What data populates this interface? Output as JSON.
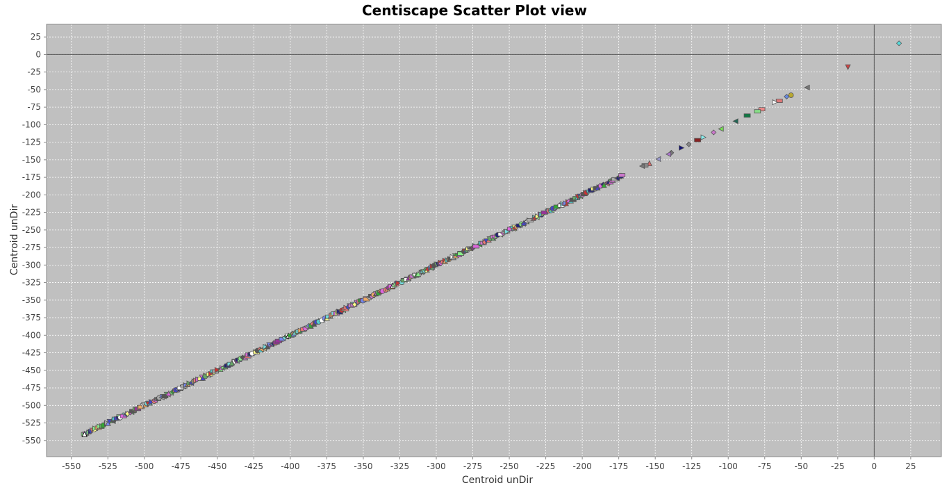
{
  "chart_data": {
    "type": "scatter",
    "title": "Centiscape Scatter Plot view",
    "xlabel": "Centroid unDir",
    "ylabel": "Centroid unDir",
    "xlim": [
      -567,
      46
    ],
    "ylim": [
      -573,
      43
    ],
    "x_ticks": [
      -550,
      -525,
      -500,
      -475,
      -450,
      -425,
      -400,
      -375,
      -350,
      -325,
      -300,
      -275,
      -250,
      -225,
      -200,
      -175,
      -150,
      -125,
      -100,
      -75,
      -50,
      -25,
      0,
      25
    ],
    "y_ticks": [
      25,
      0,
      -25,
      -50,
      -75,
      -100,
      -125,
      -150,
      -175,
      -200,
      -225,
      -250,
      -275,
      -300,
      -325,
      -350,
      -375,
      -400,
      -425,
      -450,
      -475,
      -500,
      -525,
      -550
    ],
    "grid": true,
    "zero_lines": true,
    "colors": {
      "plot_background": "#c0c0c0",
      "grid": "#ffffff",
      "marker_outline": "#555555"
    },
    "outliers": [
      {
        "x": 17,
        "y": 16,
        "shape": "diamond",
        "color": "#55dddd"
      },
      {
        "x": -18,
        "y": -18,
        "shape": "triangle-down",
        "color": "#cc4444"
      },
      {
        "x": -46,
        "y": -47,
        "shape": "triangle-left",
        "color": "#777777"
      },
      {
        "x": -57,
        "y": -58,
        "shape": "circle",
        "color": "#b8a830"
      },
      {
        "x": -60,
        "y": -60,
        "shape": "diamond",
        "color": "#6688dd"
      },
      {
        "x": -65,
        "y": -66,
        "shape": "rect",
        "color": "#dd7777"
      },
      {
        "x": -68,
        "y": -68,
        "shape": "triangle-right",
        "color": "#ffffff"
      },
      {
        "x": -77,
        "y": -78,
        "shape": "rect",
        "color": "#ee8888"
      },
      {
        "x": -80,
        "y": -81,
        "shape": "rect",
        "color": "#88dd88"
      },
      {
        "x": -87,
        "y": -87,
        "shape": "rect",
        "color": "#117744"
      },
      {
        "x": -95,
        "y": -95,
        "shape": "triangle-left",
        "color": "#226655"
      },
      {
        "x": -105,
        "y": -106,
        "shape": "triangle-left",
        "color": "#77dd55"
      },
      {
        "x": -110,
        "y": -111,
        "shape": "diamond",
        "color": "#cc77cc"
      },
      {
        "x": -117,
        "y": -118,
        "shape": "triangle-right",
        "color": "#88eeee"
      },
      {
        "x": -121,
        "y": -122,
        "shape": "rect",
        "color": "#882222"
      },
      {
        "x": -127,
        "y": -128,
        "shape": "diamond",
        "color": "#888888"
      },
      {
        "x": -132,
        "y": -133,
        "shape": "triangle-right",
        "color": "#111177"
      },
      {
        "x": -139,
        "y": -140,
        "shape": "diamond",
        "color": "#777777"
      },
      {
        "x": -141,
        "y": -142,
        "shape": "triangle-left",
        "color": "#aa77cc"
      },
      {
        "x": -148,
        "y": -149,
        "shape": "triangle-left",
        "color": "#9999cc"
      },
      {
        "x": -154,
        "y": -155,
        "shape": "triangle-up",
        "color": "#dd6666"
      },
      {
        "x": -157,
        "y": -158,
        "shape": "rect",
        "color": "#888888"
      },
      {
        "x": -159,
        "y": -159,
        "shape": "triangle-left",
        "color": "#777777"
      },
      {
        "x": -541,
        "y": -541,
        "shape": "triangle-up",
        "color": "#ffffff"
      }
    ],
    "dense_band": {
      "x_from": -541,
      "x_to": -173,
      "slope": 1.0,
      "note_none": ""
    }
  }
}
